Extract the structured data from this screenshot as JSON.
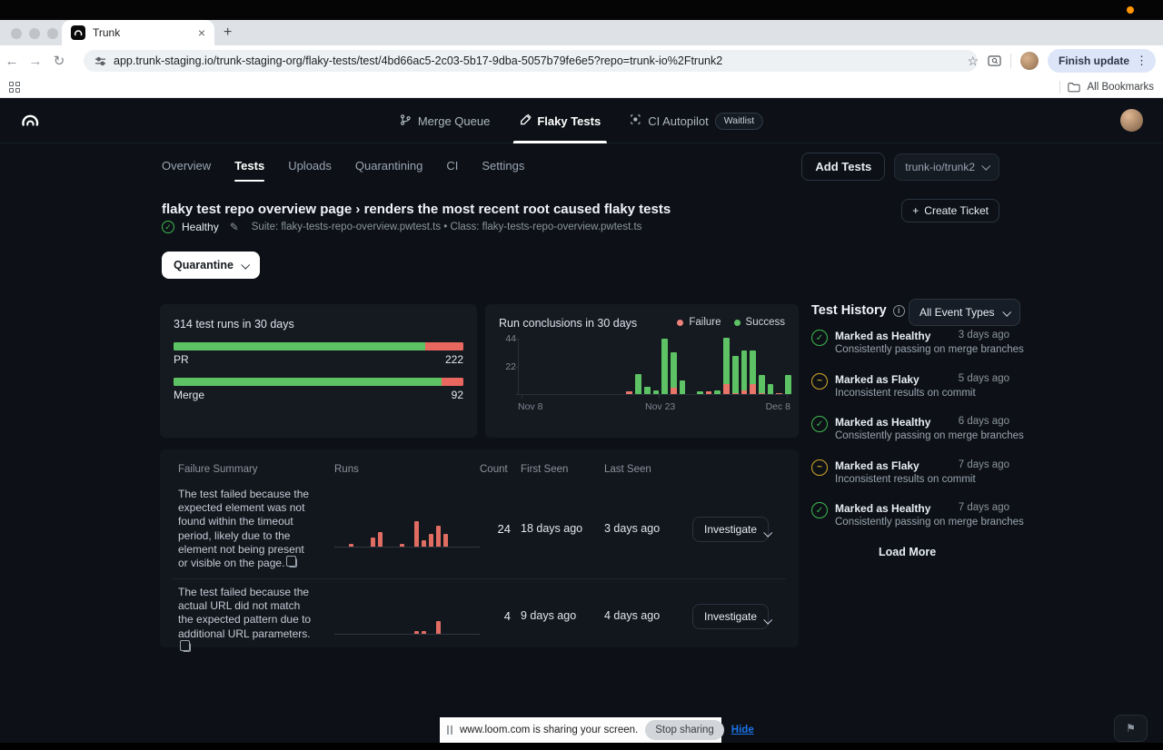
{
  "browser": {
    "tab_title": "Trunk",
    "url": "app.trunk-staging.io/trunk-staging-org/flaky-tests/test/4bd66ac5-2c03-5b17-9dba-5057b79fe6e5?repo=trunk-io%2Ftrunk2",
    "finish_update_label": "Finish update",
    "all_bookmarks_label": "All Bookmarks"
  },
  "header_nav": {
    "items": [
      {
        "label": "Merge Queue",
        "icon": "branch-icon",
        "active": false,
        "badge": null
      },
      {
        "label": "Flaky Tests",
        "icon": "flask-icon",
        "active": true,
        "badge": null
      },
      {
        "label": "CI Autopilot",
        "icon": "autopilot-icon",
        "active": false,
        "badge": "Waitlist"
      }
    ]
  },
  "subnav": {
    "tabs": [
      {
        "label": "Overview",
        "active": false
      },
      {
        "label": "Tests",
        "active": true
      },
      {
        "label": "Uploads",
        "active": false
      },
      {
        "label": "Quarantining",
        "active": false
      },
      {
        "label": "CI",
        "active": false
      },
      {
        "label": "Settings",
        "active": false
      }
    ],
    "add_tests_label": "Add Tests",
    "repo_selector_label": "trunk-io/trunk2"
  },
  "page": {
    "title": "flaky test repo overview page › renders the most recent root caused flaky tests",
    "create_ticket_label": "Create Ticket",
    "plus_glyph": "+",
    "status_label": "Healthy",
    "suite_line": "Suite: flaky-tests-repo-overview.pwtest.ts • Class: flaky-tests-repo-overview.pwtest.ts",
    "quarantine_label": "Quarantine"
  },
  "chart_data": [
    {
      "type": "bar",
      "title": "314 test runs in 30 days",
      "orientation": "horizontal-stacked",
      "categories": [
        "PR",
        "Merge"
      ],
      "series": [
        {
          "name": "Success",
          "values": [
            193,
            85
          ],
          "color": "#5dc264"
        },
        {
          "name": "Failure",
          "values": [
            29,
            7
          ],
          "color": "#e8675e"
        }
      ],
      "display_totals": [
        "222",
        "92"
      ]
    },
    {
      "type": "bar",
      "title": "Run conclusions in 30 days",
      "stacked": true,
      "legend": [
        {
          "label": "Failure",
          "color": "#ee837b"
        },
        {
          "label": "Success",
          "color": "#5dc264"
        }
      ],
      "ylim": [
        0,
        44
      ],
      "yticks": [
        44,
        22
      ],
      "xticks": [
        "Nov 8",
        "Nov 23",
        "Dec 8"
      ],
      "bars": [
        {
          "failure": 0,
          "success": 0
        },
        {
          "failure": 0,
          "success": 0
        },
        {
          "failure": 0,
          "success": 0
        },
        {
          "failure": 0,
          "success": 0
        },
        {
          "failure": 0,
          "success": 0
        },
        {
          "failure": 0,
          "success": 0
        },
        {
          "failure": 0,
          "success": 0
        },
        {
          "failure": 0,
          "success": 0
        },
        {
          "failure": 0,
          "success": 0
        },
        {
          "failure": 0,
          "success": 0
        },
        {
          "failure": 0,
          "success": 0
        },
        {
          "failure": 0,
          "success": 0
        },
        {
          "failure": 2,
          "success": 0
        },
        {
          "failure": 0,
          "success": 16
        },
        {
          "failure": 0,
          "success": 6
        },
        {
          "failure": 0,
          "success": 3
        },
        {
          "failure": 0,
          "success": 43
        },
        {
          "failure": 5,
          "success": 28
        },
        {
          "failure": 0,
          "success": 11
        },
        {
          "failure": 0,
          "success": 0
        },
        {
          "failure": 0,
          "success": 2
        },
        {
          "failure": 2,
          "success": 0
        },
        {
          "failure": 0,
          "success": 3
        },
        {
          "failure": 8,
          "success": 36
        },
        {
          "failure": 1,
          "success": 29
        },
        {
          "failure": 3,
          "success": 31
        },
        {
          "failure": 8,
          "success": 26
        },
        {
          "failure": 1,
          "success": 14
        },
        {
          "failure": 0,
          "success": 8
        },
        {
          "failure": 1,
          "success": 0
        },
        {
          "failure": 0,
          "success": 15
        }
      ]
    }
  ],
  "test_history": {
    "title": "Test History",
    "filter_label": "All Event Types",
    "events": [
      {
        "type": "healthy",
        "title": "Marked as Healthy",
        "time": "3 days ago",
        "subtitle": "Consistently passing on merge branches"
      },
      {
        "type": "flaky",
        "title": "Marked as Flaky",
        "time": "5 days ago",
        "subtitle": "Inconsistent results on commit"
      },
      {
        "type": "healthy",
        "title": "Marked as Healthy",
        "time": "6 days ago",
        "subtitle": "Consistently passing on merge branches"
      },
      {
        "type": "flaky",
        "title": "Marked as Flaky",
        "time": "7 days ago",
        "subtitle": "Inconsistent results on commit"
      },
      {
        "type": "healthy",
        "title": "Marked as Healthy",
        "time": "7 days ago",
        "subtitle": "Consistently passing on merge branches"
      }
    ],
    "load_more_label": "Load More"
  },
  "summary_table": {
    "columns": [
      "Failure Summary",
      "Runs",
      "Count",
      "First Seen",
      "Last Seen"
    ],
    "rows": [
      {
        "summary": "The test failed because the expected element was not found within the timeout period, likely due to the element not being present or visible on the page.",
        "spark": [
          0,
          0,
          2,
          0,
          0,
          6,
          9,
          0,
          0,
          2,
          0,
          16,
          4,
          8,
          13,
          8
        ],
        "count": "24",
        "first_seen": "18 days ago",
        "last_seen": "3 days ago",
        "investigate_label": "Investigate"
      },
      {
        "summary": "The test failed because the actual URL did not match the expected pattern due to additional URL parameters.",
        "spark": [
          0,
          0,
          0,
          0,
          0,
          0,
          0,
          0,
          0,
          0,
          0,
          2,
          2,
          0,
          8,
          0
        ],
        "count": "4",
        "first_seen": "9 days ago",
        "last_seen": "4 days ago",
        "investigate_label": "Investigate"
      }
    ]
  },
  "share_banner": {
    "text": "www.loom.com is sharing your screen.",
    "stop_label": "Stop sharing",
    "hide_label": "Hide"
  },
  "colors": {
    "success": "#5dc264",
    "failure": "#e8675e",
    "healthy": "#3fb950",
    "flaky": "#d4a72c"
  }
}
